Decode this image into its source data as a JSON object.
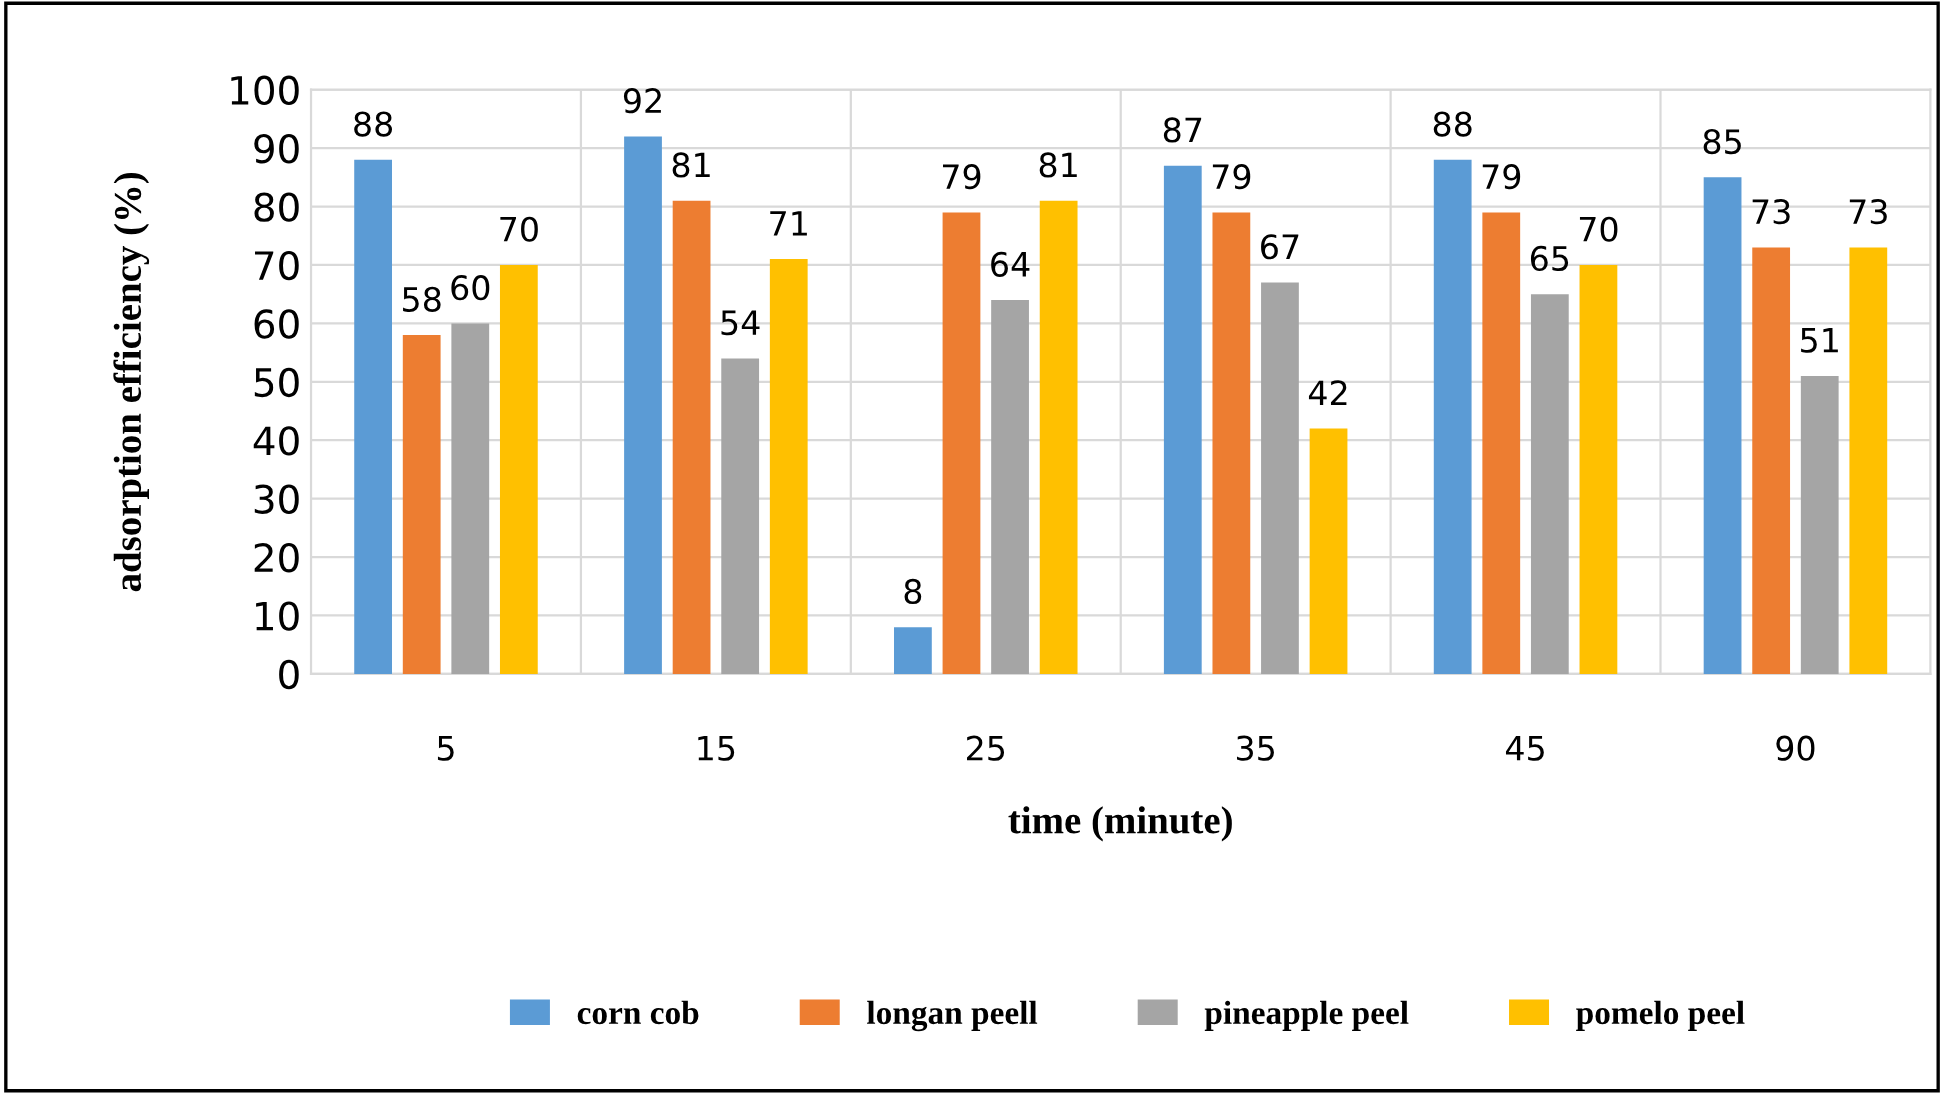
{
  "chart_data": {
    "type": "bar",
    "xlabel": "time (minute)",
    "ylabel": "adsorption efficiency (%)",
    "categories": [
      "5",
      "15",
      "25",
      "35",
      "45",
      "90"
    ],
    "series": [
      {
        "name": "corn cob",
        "color": "#5b9bd5",
        "values": [
          88,
          92,
          8,
          87,
          88,
          85
        ]
      },
      {
        "name": "longan peell",
        "color": "#ed7d31",
        "values": [
          58,
          81,
          79,
          79,
          79,
          73
        ]
      },
      {
        "name": "pineapple peel",
        "color": "#a5a5a5",
        "values": [
          60,
          54,
          64,
          67,
          65,
          51
        ]
      },
      {
        "name": "pomelo peel",
        "color": "#ffc000",
        "values": [
          70,
          71,
          81,
          42,
          70,
          73
        ]
      }
    ],
    "ylim": [
      0,
      100
    ],
    "yticks": [
      0,
      10,
      20,
      30,
      40,
      50,
      60,
      70,
      80,
      90,
      100
    ],
    "grid": true,
    "legend": "bottom",
    "data_labels": true
  }
}
